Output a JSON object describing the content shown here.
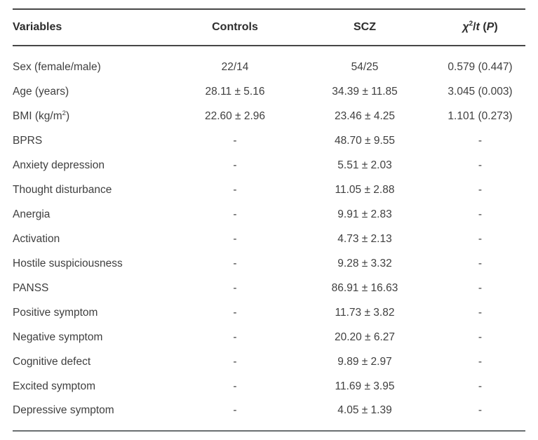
{
  "colors": {
    "text": "#3f3f3f",
    "header_text": "#2d2d2d",
    "rule_dark": "#474747",
    "rule_light": "#6b6f71",
    "bg": "#ffffff"
  },
  "table": {
    "header": {
      "variables": "Variables",
      "controls": "Controls",
      "scz": "SCZ",
      "stat_chi": "χ",
      "stat_sup": "2",
      "stat_slash": "/",
      "stat_t": "t",
      "stat_open": " (",
      "stat_p": "P",
      "stat_close": ")"
    },
    "rows": [
      {
        "variable": "Sex (female/male)",
        "controls": "22/14",
        "scz": "54/25",
        "stat": "0.579 (0.447)"
      },
      {
        "variable": "Age (years)",
        "controls": "28.11 ± 5.16",
        "scz": "34.39 ± 11.85",
        "stat": "3.045 (0.003)"
      },
      {
        "variable": "BMI (kg/m",
        "variable_sup": "2",
        "variable_end": ")",
        "controls": "22.60 ± 2.96",
        "scz": "23.46 ± 4.25",
        "stat": "1.101 (0.273)"
      },
      {
        "variable": "BPRS",
        "controls": "-",
        "scz": "48.70 ± 9.55",
        "stat": "-"
      },
      {
        "variable": "Anxiety depression",
        "controls": "-",
        "scz": "5.51 ± 2.03",
        "stat": "-"
      },
      {
        "variable": "Thought disturbance",
        "controls": "-",
        "scz": "11.05 ± 2.88",
        "stat": "-"
      },
      {
        "variable": "Anergia",
        "controls": "-",
        "scz": "9.91 ± 2.83",
        "stat": "-"
      },
      {
        "variable": "Activation",
        "controls": "-",
        "scz": "4.73 ± 2.13",
        "stat": "-"
      },
      {
        "variable": "Hostile suspiciousness",
        "controls": "-",
        "scz": "9.28 ± 3.32",
        "stat": "-"
      },
      {
        "variable": "PANSS",
        "controls": "-",
        "scz": "86.91 ± 16.63",
        "stat": "-"
      },
      {
        "variable": "Positive symptom",
        "controls": "-",
        "scz": "11.73 ± 3.82",
        "stat": "-"
      },
      {
        "variable": "Negative symptom",
        "controls": "-",
        "scz": "20.20 ± 6.27",
        "stat": "-"
      },
      {
        "variable": "Cognitive defect",
        "controls": "-",
        "scz": "9.89 ± 2.97",
        "stat": "-"
      },
      {
        "variable": "Excited symptom",
        "controls": "-",
        "scz": "11.69 ± 3.95",
        "stat": "-"
      },
      {
        "variable": "Depressive symptom",
        "controls": "-",
        "scz": "4.05 ± 1.39",
        "stat": "-"
      }
    ]
  }
}
